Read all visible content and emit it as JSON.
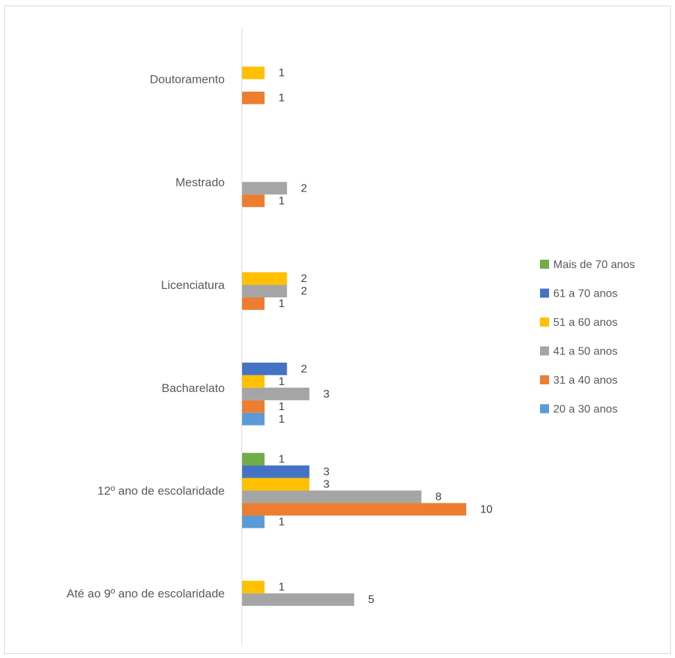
{
  "chart_data": {
    "type": "bar",
    "orientation": "horizontal",
    "categories": [
      "Até ao 9º ano de escolaridade",
      "12º ano de escolaridade",
      "Bacharelato",
      "Licenciatura",
      "Mestrado",
      "Doutoramento"
    ],
    "series": [
      {
        "name": "20 a 30 anos",
        "color": "#5B9BD5",
        "values": [
          null,
          1,
          1,
          null,
          null,
          null
        ]
      },
      {
        "name": "31 a 40 anos",
        "color": "#ED7D31",
        "values": [
          null,
          10,
          1,
          1,
          1,
          1
        ]
      },
      {
        "name": "41 a 50 anos",
        "color": "#A5A5A5",
        "values": [
          5,
          8,
          3,
          2,
          2,
          null
        ]
      },
      {
        "name": "51 a 60 anos",
        "color": "#FFC000",
        "values": [
          1,
          3,
          1,
          2,
          null,
          1
        ]
      },
      {
        "name": "61 a 70 anos",
        "color": "#4472C4",
        "values": [
          null,
          3,
          2,
          null,
          null,
          null
        ]
      },
      {
        "name": "Mais de 70 anos",
        "color": "#70AD47",
        "values": [
          null,
          1,
          null,
          null,
          null,
          null
        ]
      }
    ],
    "legend_order": [
      "Mais de 70 anos",
      "61 a 70 anos",
      "51 a 60 anos",
      "41 a 50 anos",
      "31 a 40 anos",
      "20 a 30 anos"
    ],
    "legend_position": "right",
    "xlim": [
      0,
      10
    ],
    "grid": false,
    "data_labels": true
  }
}
